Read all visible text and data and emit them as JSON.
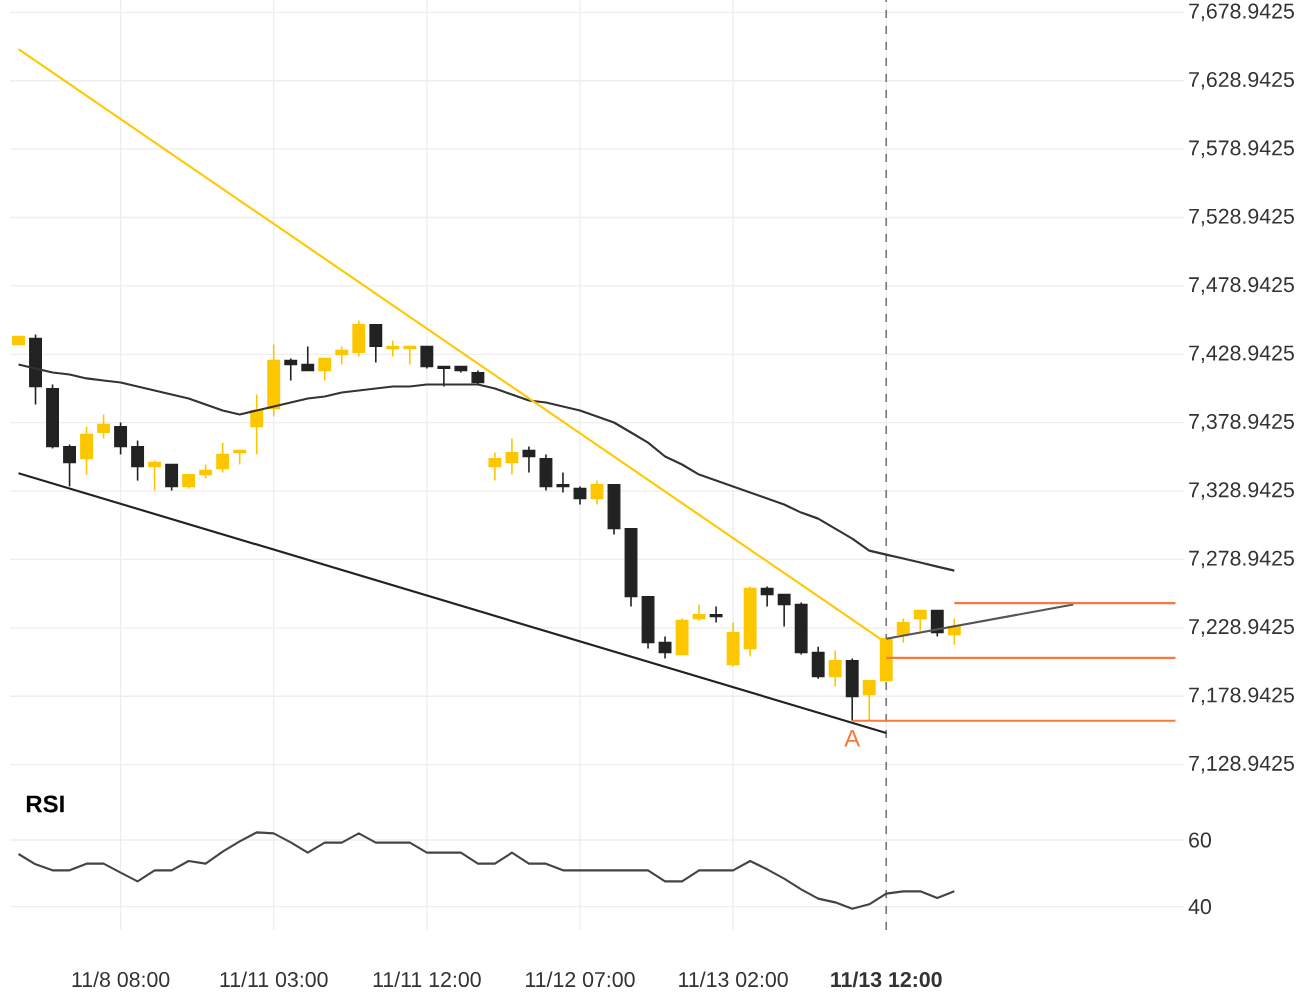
{
  "chart_data": [
    {
      "type": "candlestick",
      "categories": [
        null,
        null,
        null,
        null,
        null,
        null,
        "11/8 08:00",
        null,
        null,
        null,
        null,
        null,
        null,
        null,
        null,
        "11/11 03:00",
        null,
        null,
        null,
        null,
        null,
        null,
        null,
        null,
        "11/11 12:00",
        null,
        null,
        null,
        null,
        null,
        null,
        null,
        null,
        "11/12 07:00",
        null,
        null,
        null,
        null,
        null,
        null,
        null,
        null,
        "11/13 02:00",
        null,
        null,
        null,
        null,
        null,
        null,
        null,
        null,
        "11/13 12:00",
        null,
        null,
        null,
        null,
        null,
        null,
        null,
        null,
        null,
        null,
        null,
        null,
        null,
        null,
        null,
        null,
        null
      ],
      "ohlc": [
        [
          7436.1,
          7442.0,
          7436.1,
          7442.0
        ],
        [
          7440.5,
          7443.4,
          7392.2,
          7405.4
        ],
        [
          7403.9,
          7406.9,
          7360.1,
          7361.5
        ],
        [
          7361.5,
          7363.0,
          7332.3,
          7349.8
        ],
        [
          7352.7,
          7376.1,
          7341.0,
          7370.3
        ],
        [
          7371.8,
          7384.9,
          7367.4,
          7377.6
        ],
        [
          7376.1,
          7379.1,
          7355.7,
          7361.5
        ],
        [
          7361.5,
          7365.9,
          7336.6,
          7346.9
        ],
        [
          7346.9,
          7351.3,
          7329.3,
          7349.8
        ],
        [
          7348.4,
          7348.4,
          7329.3,
          7332.3
        ],
        [
          7332.3,
          7341.0,
          7330.8,
          7341.0
        ],
        [
          7341.0,
          7348.4,
          7338.1,
          7344.0
        ],
        [
          7345.4,
          7364.4,
          7342.5,
          7355.7
        ],
        [
          7357.1,
          7358.6,
          7348.4,
          7358.6
        ],
        [
          7376.1,
          7399.6,
          7355.7,
          7387.9
        ],
        [
          7389.3,
          7436.1,
          7383.5,
          7424.4
        ],
        [
          7424.4,
          7425.9,
          7409.8,
          7421.5
        ],
        [
          7421.5,
          7434.7,
          7417.1,
          7417.1
        ],
        [
          7417.1,
          7425.9,
          7409.8,
          7425.9
        ],
        [
          7428.8,
          7434.7,
          7421.5,
          7431.7
        ],
        [
          7430.3,
          7453.7,
          7427.3,
          7450.7
        ],
        [
          7450.7,
          7450.7,
          7423.0,
          7434.7
        ],
        [
          7433.2,
          7439.0,
          7427.3,
          7434.7
        ],
        [
          7433.2,
          7434.7,
          7421.5,
          7434.7
        ],
        [
          7434.7,
          7434.7,
          7418.6,
          7420.0
        ],
        [
          7420.0,
          7420.0,
          7405.4,
          7418.6
        ],
        [
          7420.0,
          7420.0,
          7415.6,
          7417.1
        ],
        [
          7415.6,
          7417.1,
          7406.9,
          7408.3
        ],
        [
          7346.9,
          7357.1,
          7336.6,
          7352.7
        ],
        [
          7349.8,
          7367.4,
          7341.0,
          7357.1
        ],
        [
          7358.6,
          7361.5,
          7342.5,
          7354.2
        ],
        [
          7352.7,
          7355.7,
          7329.3,
          7332.3
        ],
        [
          7333.7,
          7342.5,
          7327.9,
          7332.3
        ],
        [
          7330.8,
          7332.3,
          7319.1,
          7323.5
        ],
        [
          7323.5,
          7336.6,
          7319.1,
          7333.7
        ],
        [
          7333.7,
          7333.7,
          7297.2,
          7301.5
        ],
        [
          7301.5,
          7301.5,
          7244.5,
          7251.8
        ],
        [
          7251.8,
          7251.8,
          7213.8,
          7218.2
        ],
        [
          7218.2,
          7222.6,
          7206.5,
          7210.9
        ],
        [
          7209.4,
          7235.7,
          7209.4,
          7234.3
        ],
        [
          7235.7,
          7246.0,
          7234.3,
          7238.6
        ],
        [
          7238.6,
          7244.5,
          7232.8,
          7237.2
        ],
        [
          7202.1,
          7232.8,
          7200.6,
          7225.5
        ],
        [
          7213.8,
          7259.1,
          7207.9,
          7257.7
        ],
        [
          7257.7,
          7259.1,
          7244.5,
          7253.3
        ],
        [
          7253.3,
          7253.3,
          7229.9,
          7246.0
        ],
        [
          7246.0,
          7247.4,
          7209.4,
          7210.9
        ],
        [
          7210.9,
          7215.2,
          7191.8,
          7193.3
        ],
        [
          7193.3,
          7212.3,
          7186.0,
          7205.0
        ],
        [
          7205.0,
          7206.5,
          7161.1,
          7178.7
        ],
        [
          7180.1,
          7190.4,
          7161.1,
          7190.4
        ],
        [
          7190.4,
          7221.1,
          7190.4,
          7221.1
        ],
        [
          7224.0,
          7235.7,
          7218.2,
          7232.8
        ],
        [
          7235.7,
          7241.6,
          7226.9,
          7241.6
        ],
        [
          7241.6,
          7241.6,
          7222.6,
          7225.5
        ],
        [
          7224.0,
          7235.7,
          7216.7,
          7229.9
        ],
        null,
        null,
        null,
        null,
        null,
        null,
        null,
        null,
        null,
        null,
        null,
        null,
        null
      ],
      "colors": [
        "#fcc700",
        "#222222",
        "#222222",
        "#222222",
        "#fcc700",
        "#fcc700",
        "#222222",
        "#222222",
        "#fcc700",
        "#222222",
        "#fcc700",
        "#fcc700",
        "#fcc700",
        "#fcc700",
        "#fcc700",
        "#fcc700",
        "#222222",
        "#222222",
        "#fcc700",
        "#fcc700",
        "#fcc700",
        "#222222",
        "#fcc700",
        "#fcc700",
        "#222222",
        "#222222",
        "#222222",
        "#222222",
        "#fcc700",
        "#fcc700",
        "#222222",
        "#222222",
        "#222222",
        "#222222",
        "#fcc700",
        "#222222",
        "#222222",
        "#222222",
        "#222222",
        "#fcc700",
        "#fcc700",
        "#222222",
        "#fcc700",
        "#fcc700",
        "#222222",
        "#222222",
        "#222222",
        "#222222",
        "#fcc700",
        "#222222",
        "#fcc700",
        "#fcc700",
        "#fcc700",
        "#fcc700",
        "#222222",
        "#fcc700",
        null,
        null,
        null,
        null,
        null,
        null,
        null,
        null,
        null,
        null,
        null,
        null,
        null
      ],
      "series": [
        {
          "type": "line",
          "color": "#333333",
          "values": [
            7421.5,
            7418.6,
            7415.6,
            7414.2,
            7411.3,
            7409.8,
            7408.3,
            7405.4,
            7402.5,
            7399.6,
            7396.6,
            7392.2,
            7387.9,
            7384.9,
            7387.9,
            7390.8,
            7393.7,
            7396.6,
            7398.1,
            7401.0,
            7402.5,
            7403.9,
            7405.4,
            7405.4,
            7406.9,
            7406.9,
            7406.9,
            7406.9,
            7403.9,
            7399.6,
            7395.2,
            7393.7,
            7390.8,
            7387.9,
            7383.5,
            7379.1,
            7371.8,
            7364.4,
            7354.2,
            7348.4,
            7341.0,
            7336.6,
            7332.3,
            7327.9,
            7323.5,
            7319.1,
            7313.2,
            7308.8,
            7301.5,
            7294.2,
            7285.4,
            7282.5,
            7279.6,
            7276.7,
            7273.7,
            7270.8,
            null,
            null,
            null,
            null,
            null,
            null,
            null,
            null,
            null,
            null,
            null,
            null,
            null
          ]
        },
        {
          "type": "line",
          "color": "#ffc800",
          "values": [
            7652,
            null,
            null,
            null,
            null,
            null,
            null,
            null,
            null,
            null,
            null,
            null,
            null,
            null,
            null,
            null,
            null,
            null,
            null,
            null,
            null,
            null,
            null,
            null,
            null,
            null,
            null,
            null,
            null,
            null,
            null,
            null,
            null,
            null,
            null,
            null,
            null,
            null,
            null,
            null,
            null,
            null,
            null,
            null,
            null,
            null,
            null,
            null,
            null,
            null,
            null,
            7218,
            null,
            null,
            null,
            null,
            null,
            null,
            null,
            null,
            null,
            null,
            null,
            null,
            null,
            null,
            null,
            null,
            null
          ]
        },
        {
          "type": "line",
          "color": "#222222",
          "values": [
            7342,
            null,
            null,
            null,
            null,
            null,
            null,
            null,
            null,
            null,
            null,
            null,
            null,
            null,
            null,
            null,
            null,
            null,
            null,
            null,
            null,
            null,
            null,
            null,
            null,
            null,
            null,
            null,
            null,
            null,
            null,
            null,
            null,
            null,
            null,
            null,
            null,
            null,
            null,
            null,
            null,
            null,
            null,
            null,
            null,
            null,
            null,
            null,
            null,
            null,
            null,
            7152,
            null,
            null,
            null,
            null,
            null,
            null,
            null,
            null,
            null,
            null,
            null,
            null,
            null,
            null,
            null,
            null,
            null
          ]
        },
        {
          "type": "line",
          "color": "#555555",
          "values": [
            null,
            null,
            null,
            null,
            null,
            null,
            null,
            null,
            null,
            null,
            null,
            null,
            null,
            null,
            null,
            null,
            null,
            null,
            null,
            null,
            null,
            null,
            null,
            null,
            null,
            null,
            null,
            null,
            null,
            null,
            null,
            null,
            null,
            null,
            null,
            null,
            null,
            null,
            null,
            null,
            null,
            null,
            null,
            null,
            null,
            null,
            null,
            null,
            null,
            null,
            null,
            7221,
            null,
            null,
            null,
            null,
            null,
            null,
            null,
            null,
            null,
            null,
            7246,
            null,
            null,
            null,
            null,
            null,
            null
          ]
        },
        {
          "type": "line",
          "color": "#f47b3c",
          "values": [
            null,
            null,
            null,
            null,
            null,
            null,
            null,
            null,
            null,
            null,
            null,
            null,
            null,
            null,
            null,
            null,
            null,
            null,
            null,
            null,
            null,
            null,
            null,
            null,
            null,
            null,
            null,
            null,
            null,
            null,
            null,
            null,
            null,
            null,
            null,
            null,
            null,
            null,
            null,
            null,
            null,
            null,
            null,
            null,
            null,
            null,
            null,
            null,
            null,
            null,
            null,
            null,
            null,
            null,
            null,
            7247,
            null,
            null,
            null,
            null,
            null,
            null,
            null,
            null,
            null,
            null,
            null,
            null,
            7247
          ]
        },
        {
          "type": "line",
          "color": "#f47b3c",
          "values": [
            null,
            null,
            null,
            null,
            null,
            null,
            null,
            null,
            null,
            null,
            null,
            null,
            null,
            null,
            null,
            null,
            null,
            null,
            null,
            null,
            null,
            null,
            null,
            null,
            null,
            null,
            null,
            null,
            null,
            null,
            null,
            null,
            null,
            null,
            null,
            null,
            null,
            null,
            null,
            null,
            null,
            null,
            null,
            null,
            null,
            null,
            null,
            null,
            null,
            null,
            null,
            7207,
            null,
            null,
            null,
            null,
            null,
            null,
            null,
            null,
            null,
            null,
            null,
            null,
            null,
            null,
            null,
            null,
            7207
          ]
        },
        {
          "type": "line",
          "color": "#f47b3c",
          "values": [
            null,
            null,
            null,
            null,
            null,
            null,
            null,
            null,
            null,
            null,
            null,
            null,
            null,
            null,
            null,
            null,
            null,
            null,
            null,
            null,
            null,
            null,
            null,
            null,
            null,
            null,
            null,
            null,
            null,
            null,
            null,
            null,
            null,
            null,
            null,
            null,
            null,
            null,
            null,
            null,
            null,
            null,
            null,
            null,
            null,
            null,
            null,
            null,
            null,
            7161,
            null,
            null,
            null,
            null,
            null,
            null,
            null,
            null,
            null,
            null,
            null,
            null,
            null,
            null,
            null,
            null,
            null,
            null,
            7161
          ]
        }
      ],
      "ylim": [
        7125,
        7688
      ],
      "yticks": [
        {
          "value": 7128.9425,
          "label": "7,128.9425"
        },
        {
          "value": 7178.9425,
          "label": "7,178.9425"
        },
        {
          "value": 7228.9425,
          "label": "7,228.9425"
        },
        {
          "value": 7278.9425,
          "label": "7,278.9425"
        },
        {
          "value": 7328.9425,
          "label": "7,328.9425"
        },
        {
          "value": 7378.9425,
          "label": "7,378.9425"
        },
        {
          "value": 7428.9425,
          "label": "7,428.9425"
        },
        {
          "value": 7478.9425,
          "label": "7,478.9425"
        },
        {
          "value": 7528.9425,
          "label": "7,528.9425"
        },
        {
          "value": 7578.9425,
          "label": "7,578.9425"
        },
        {
          "value": 7628.9425,
          "label": "7,628.9425"
        },
        {
          "value": 7678.9425,
          "label": "7,678.9425"
        }
      ],
      "grid": true,
      "tick_labels": "y",
      "ref_lines": [
        {
          "axis": "x",
          "value": "11/13 12:00",
          "color": "#777777",
          "line_style": "dashed"
        }
      ],
      "annotations": [
        "A"
      ]
    },
    {
      "type": "line",
      "title": "RSI",
      "categories": [
        null,
        null,
        null,
        null,
        null,
        null,
        "11/8 08:00",
        null,
        null,
        null,
        null,
        null,
        null,
        null,
        null,
        "11/11 03:00",
        null,
        null,
        null,
        null,
        null,
        null,
        null,
        null,
        "11/11 12:00",
        null,
        null,
        null,
        null,
        null,
        null,
        null,
        null,
        "11/12 07:00",
        null,
        null,
        null,
        null,
        null,
        null,
        null,
        null,
        "11/13 02:00",
        null,
        null,
        null,
        null,
        null,
        null,
        null,
        null,
        "11/13 12:00",
        null,
        null,
        null,
        null,
        null,
        null,
        null,
        null,
        null,
        null,
        null,
        null,
        null,
        null,
        null,
        null,
        null
      ],
      "values": [
        55.8,
        52.7,
        50.9,
        50.9,
        52.9,
        52.9,
        50.2,
        47.6,
        50.9,
        50.9,
        53.7,
        52.9,
        56.5,
        59.6,
        62.3,
        62.0,
        59.3,
        56.2,
        59.2,
        59.2,
        62.0,
        59.2,
        59.2,
        59.2,
        56.2,
        56.2,
        56.2,
        52.9,
        52.9,
        56.2,
        52.9,
        52.9,
        50.9,
        50.9,
        50.9,
        50.9,
        50.9,
        50.9,
        47.6,
        47.6,
        50.9,
        50.9,
        50.9,
        53.7,
        51.2,
        48.4,
        45.2,
        42.4,
        41.3,
        39.4,
        40.7,
        43.9,
        44.6,
        44.6,
        42.6,
        44.6,
        null,
        null,
        null,
        null,
        null,
        null,
        null,
        null,
        null,
        null,
        null,
        null,
        null
      ],
      "color": "#444444",
      "ylim": [
        33,
        81
      ],
      "yticks": [
        40,
        60
      ],
      "grid": true,
      "ref_lines": [
        {
          "axis": "x",
          "value": "11/13 12:00",
          "color": "#777777",
          "line_style": "dashed"
        }
      ]
    }
  ]
}
